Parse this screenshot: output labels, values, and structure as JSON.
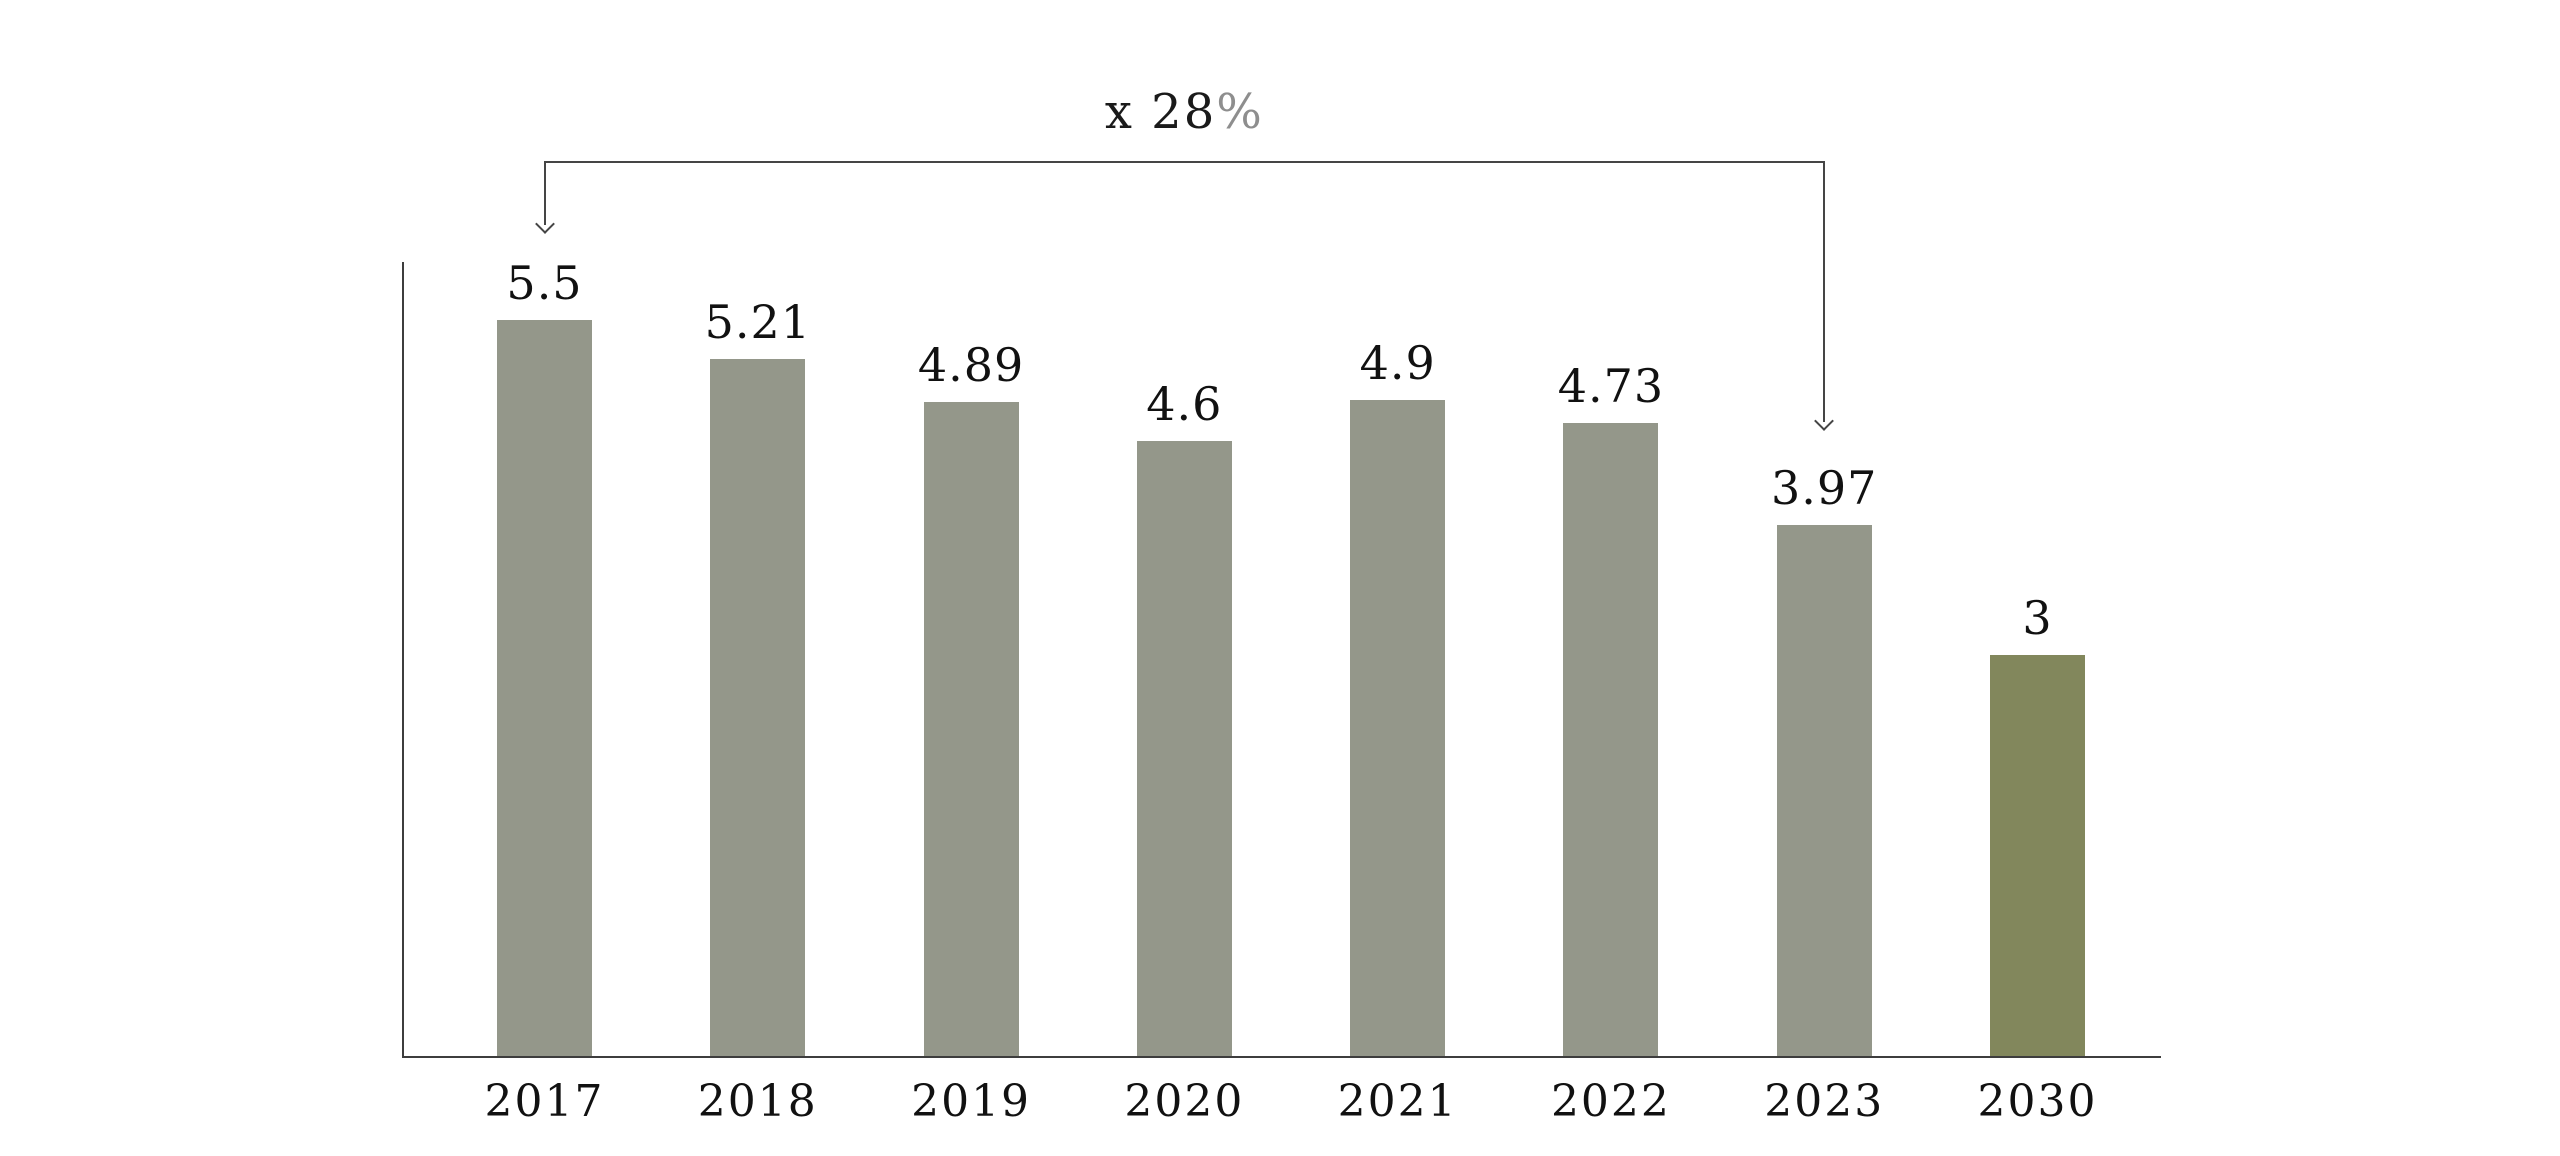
{
  "chart_data": {
    "type": "bar",
    "title": "",
    "xlabel": "",
    "ylabel": "",
    "categories": [
      "2017",
      "2018",
      "2019",
      "2020",
      "2021",
      "2022",
      "2023",
      "2030"
    ],
    "values": [
      5.5,
      5.21,
      4.89,
      4.6,
      4.9,
      4.73,
      3.97,
      3
    ],
    "value_labels": [
      "5.5",
      "5.21",
      "4.89",
      "4.6",
      "4.9",
      "4.73",
      "3.97",
      "3"
    ],
    "ylim": [
      0,
      5.94
    ],
    "grid": false,
    "legend": "none",
    "bar_color": "#94978A",
    "highlight_color": "#82875C",
    "highlight_category": "2030",
    "axis_color": "#3d3d3d",
    "text_color": "#111111",
    "annotation": {
      "label": "x 28%",
      "from_category": "2017",
      "to_category": "2023"
    }
  }
}
